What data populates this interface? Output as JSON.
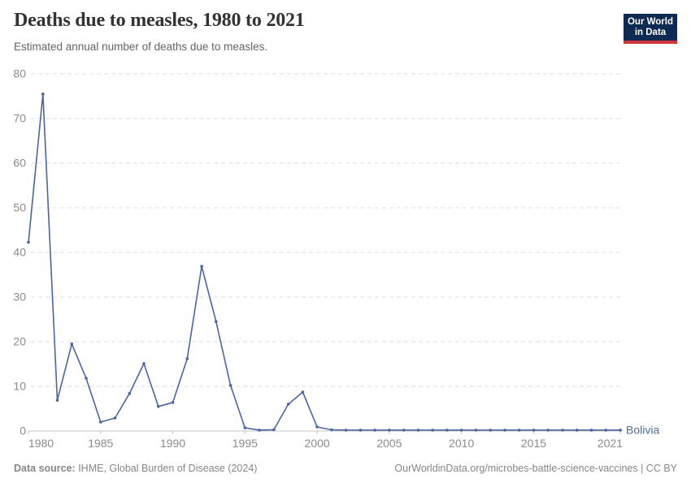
{
  "header": {
    "title": "Deaths due to measles, 1980 to 2021",
    "subtitle": "Estimated annual number of deaths due to measles.",
    "logo": {
      "line1": "Our World",
      "line2": "in Data"
    }
  },
  "chart_data": {
    "type": "line",
    "title": "Deaths due to measles, 1980 to 2021",
    "xlabel": "",
    "ylabel": "",
    "ylim": [
      0,
      80
    ],
    "yticks": [
      0,
      10,
      20,
      30,
      40,
      50,
      60,
      70,
      80
    ],
    "xticks": [
      1980,
      1985,
      1990,
      1995,
      2000,
      2005,
      2010,
      2015,
      2021
    ],
    "grid": "horizontal-dashed",
    "legend_position": "end-of-line-label",
    "x": [
      1980,
      1981,
      1982,
      1983,
      1984,
      1985,
      1986,
      1987,
      1988,
      1989,
      1990,
      1991,
      1992,
      1993,
      1994,
      1995,
      1996,
      1997,
      1998,
      1999,
      2000,
      2001,
      2002,
      2003,
      2004,
      2005,
      2006,
      2007,
      2008,
      2009,
      2010,
      2011,
      2012,
      2013,
      2014,
      2015,
      2016,
      2017,
      2018,
      2019,
      2020,
      2021
    ],
    "series": [
      {
        "name": "Bolivia",
        "values": [
          42.3,
          75.5,
          6.9,
          19.5,
          11.8,
          2.0,
          2.9,
          8.4,
          15.1,
          5.5,
          6.4,
          16.2,
          36.9,
          24.5,
          10.2,
          0.7,
          0.2,
          0.3,
          6.0,
          8.7,
          0.9,
          0.25,
          0.2,
          0.2,
          0.2,
          0.2,
          0.2,
          0.2,
          0.2,
          0.2,
          0.2,
          0.2,
          0.2,
          0.2,
          0.2,
          0.2,
          0.2,
          0.2,
          0.2,
          0.2,
          0.2,
          0.2
        ]
      }
    ],
    "colors": {
      "line": "#4a669c",
      "entity_label": "#4c6f9f",
      "gridline": "#dddddd",
      "axis": "#c4c4c4",
      "tick_text": "#8b8b8b"
    }
  },
  "footer": {
    "datasource_label": "Data source:",
    "datasource_text": " IHME, Global Burden of Disease (2024)",
    "credit": "OurWorldinData.org/microbes-battle-science-vaccines | CC BY"
  }
}
